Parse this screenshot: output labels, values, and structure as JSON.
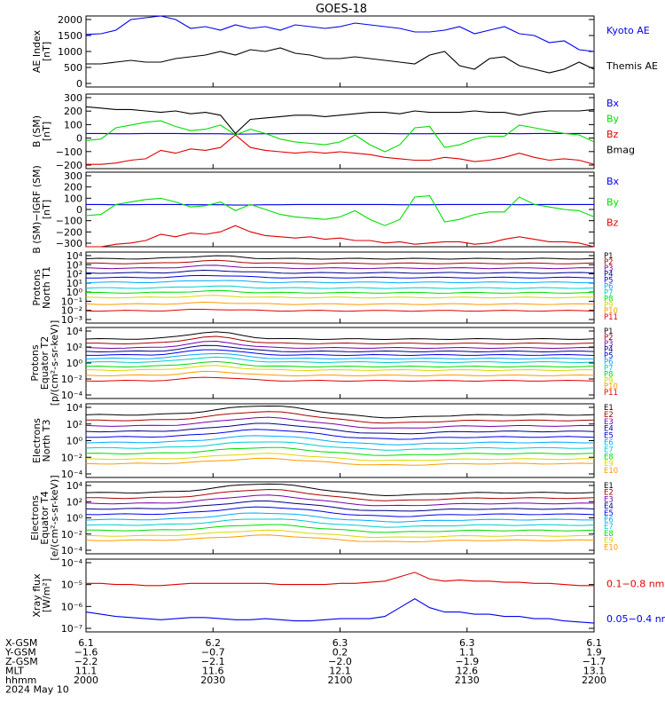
{
  "title": "GOES-18",
  "colors": {
    "black": "#000000",
    "red": "#e00000",
    "blue": "#0000ee",
    "green": "#00dd00",
    "orange": "#ff9900",
    "yellow": "#d8d800",
    "cyan": "#00cccc",
    "lightblue": "#00aaff",
    "purple": "#7700aa",
    "darkblue": "#000088",
    "darkred": "#aa0000"
  },
  "chart_data": [
    {
      "type": "line",
      "id": "ae",
      "ylabel": [
        "AE Index",
        "[nT]"
      ],
      "yticks": [
        "2000",
        "1500",
        "1000",
        "500",
        "0"
      ],
      "ylim": [
        0,
        2000
      ],
      "series": [
        {
          "name": "Kyoto AE",
          "color": "#0000ee",
          "y": [
            1480,
            1500,
            1600,
            1900,
            1950,
            2000,
            1900,
            1650,
            1700,
            1600,
            1750,
            1650,
            1700,
            1600,
            1750,
            1700,
            1650,
            1700,
            1800,
            1750,
            1700,
            1650,
            1550,
            1550,
            1600,
            1700,
            1500,
            1600,
            1700,
            1500,
            1450,
            1250,
            1300,
            1050,
            1000
          ]
        },
        {
          "name": "Themis AE",
          "color": "#000000",
          "y": [
            650,
            650,
            700,
            750,
            700,
            700,
            800,
            850,
            900,
            1000,
            900,
            1050,
            1000,
            1100,
            950,
            900,
            800,
            800,
            850,
            800,
            750,
            700,
            650,
            900,
            1000,
            600,
            500,
            800,
            850,
            600,
            500,
            400,
            500,
            700,
            500
          ]
        }
      ]
    },
    {
      "type": "line",
      "id": "b-sm",
      "ylabel": [
        "B (SM)",
        "[nT]"
      ],
      "yticks": [
        "300",
        "200",
        "100",
        "0",
        "−100",
        "−200"
      ],
      "ylim": [
        -230,
        300
      ],
      "series": [
        {
          "name": "Bx",
          "color": "#0000ee",
          "y": [
            20,
            20,
            18,
            18,
            20,
            20,
            20,
            18,
            18,
            18,
            15,
            16,
            18,
            18,
            20,
            20,
            20,
            20,
            20,
            20,
            20,
            18,
            18,
            18,
            20,
            20,
            20,
            20,
            20,
            18,
            20,
            20,
            20,
            20,
            20
          ]
        },
        {
          "name": "By",
          "color": "#00dd00",
          "y": [
            -30,
            -20,
            60,
            80,
            100,
            110,
            70,
            40,
            50,
            80,
            10,
            50,
            20,
            -20,
            -40,
            -50,
            -60,
            -40,
            10,
            -60,
            -110,
            -60,
            60,
            70,
            -80,
            -60,
            -20,
            0,
            0,
            80,
            60,
            40,
            20,
            10,
            -40
          ]
        },
        {
          "name": "Bz",
          "color": "#e00000",
          "y": [
            -200,
            -200,
            -190,
            -170,
            -160,
            -100,
            -120,
            -90,
            -100,
            -80,
            10,
            -80,
            -100,
            -110,
            -120,
            -110,
            -120,
            -110,
            -120,
            -130,
            -150,
            -160,
            -170,
            -170,
            -150,
            -160,
            -180,
            -170,
            -150,
            -120,
            -150,
            -170,
            -160,
            -170,
            -200
          ]
        },
        {
          "name": "Bmag",
          "color": "#000000",
          "y": [
            210,
            200,
            190,
            190,
            180,
            170,
            180,
            160,
            170,
            150,
            20,
            120,
            130,
            140,
            150,
            150,
            140,
            150,
            160,
            170,
            170,
            160,
            180,
            170,
            170,
            170,
            180,
            170,
            170,
            150,
            170,
            180,
            180,
            180,
            190
          ]
        }
      ]
    },
    {
      "type": "line",
      "id": "b-igrf",
      "ylabel": [
        "B (SM)−IGRF (SM)",
        "[nT]"
      ],
      "yticks": [
        "300",
        "200",
        "100",
        "0",
        "−100",
        "−200",
        "−300"
      ],
      "ylim": [
        -300,
        300
      ],
      "series": [
        {
          "name": "Bx",
          "color": "#0000ee",
          "y": [
            40,
            40,
            38,
            38,
            40,
            40,
            40,
            38,
            38,
            38,
            35,
            36,
            38,
            38,
            40,
            40,
            40,
            40,
            40,
            40,
            40,
            38,
            38,
            38,
            40,
            40,
            40,
            40,
            40,
            38,
            40,
            40,
            40,
            40,
            40
          ]
        },
        {
          "name": "By",
          "color": "#00dd00",
          "y": [
            -50,
            -40,
            40,
            60,
            80,
            90,
            60,
            20,
            30,
            60,
            -10,
            40,
            0,
            -40,
            -60,
            -70,
            -80,
            -60,
            -10,
            -80,
            -130,
            -80,
            100,
            110,
            -100,
            -80,
            -40,
            -20,
            -20,
            100,
            40,
            20,
            0,
            -10,
            -60
          ]
        },
        {
          "name": "Bz",
          "color": "#e00000",
          "y": [
            -300,
            -300,
            -280,
            -270,
            -250,
            -200,
            -220,
            -190,
            -200,
            -180,
            -130,
            -180,
            -210,
            -220,
            -230,
            -220,
            -240,
            -230,
            -250,
            -250,
            -270,
            -260,
            -280,
            -270,
            -260,
            -260,
            -280,
            -270,
            -240,
            -220,
            -240,
            -260,
            -260,
            -270,
            -300
          ]
        }
      ]
    },
    {
      "type": "line",
      "id": "protons-north",
      "log": true,
      "ylabel": [
        "Protons",
        "North T1"
      ],
      "yticks": [
        "10⁴",
        "10³",
        "10²",
        "10¹",
        "10⁰",
        "10⁻¹",
        "10⁻²",
        "10⁻³"
      ],
      "ylim": [
        -3.5,
        4
      ],
      "labels": [
        "P1",
        "P2",
        "P3",
        "P4",
        "P5",
        "P6",
        "P7",
        "P8",
        "P9",
        "P10",
        "P11"
      ],
      "bases": [
        3.3,
        2.8,
        2.3,
        1.8,
        1.3,
        0.8,
        0.2,
        -0.3,
        -0.8,
        -1.5,
        -2.2
      ],
      "colors": [
        "#000000",
        "#aa0000",
        "#7700aa",
        "#000088",
        "#0000ee",
        "#00aaff",
        "#00cccc",
        "#00dd00",
        "#d8d800",
        "#ff9900",
        "#e00000"
      ]
    },
    {
      "type": "line",
      "id": "protons-equator",
      "log": true,
      "ylabel": [
        "Protons",
        "Equator T2",
        "[p/(cm²-s-sr-keV)]"
      ],
      "yticks": [
        "10⁴",
        "10²",
        "10⁰",
        "10⁻²",
        "10⁻⁴"
      ],
      "ylim": [
        -4,
        4
      ],
      "labels": [
        "P1",
        "P2",
        "P3",
        "P4",
        "P5",
        "P6",
        "P7",
        "P8",
        "P9",
        "P10",
        "P11"
      ],
      "bases": [
        2.7,
        2.2,
        1.7,
        1.3,
        0.9,
        0.5,
        0.1,
        -0.4,
        -0.8,
        -1.4,
        -2.0
      ],
      "colors": [
        "#000000",
        "#aa0000",
        "#7700aa",
        "#000088",
        "#0000ee",
        "#00aaff",
        "#00cccc",
        "#00dd00",
        "#d8d800",
        "#ff9900",
        "#e00000"
      ]
    },
    {
      "type": "line",
      "id": "electrons-north",
      "log": true,
      "ylabel": [
        "Electrons",
        "North T3"
      ],
      "yticks": [
        "10⁴",
        "10²",
        "10⁰",
        "10⁻²",
        "10⁻⁴"
      ],
      "ylim": [
        -4,
        4
      ],
      "labels": [
        "E1",
        "E2",
        "E3",
        "E4",
        "E5",
        "E6",
        "E7",
        "E8",
        "E9",
        "E10"
      ],
      "bases": [
        2.8,
        2.2,
        1.6,
        1.0,
        0.4,
        -0.2,
        -0.8,
        -1.4,
        -2.0,
        -2.5
      ],
      "colors": [
        "#000000",
        "#aa0000",
        "#7700aa",
        "#000088",
        "#0000ee",
        "#00aaff",
        "#00cccc",
        "#00dd00",
        "#d8d800",
        "#ff9900"
      ]
    },
    {
      "type": "line",
      "id": "electrons-equator",
      "log": true,
      "ylabel": [
        "Electrons",
        "Equator T4",
        "[e/(cm²-s-sr-keV)]"
      ],
      "yticks": [
        "10⁴",
        "10²",
        "10⁰",
        "10⁻²",
        "10⁻⁴"
      ],
      "ylim": [
        -4,
        4
      ],
      "labels": [
        "E1",
        "E2",
        "E3",
        "E4",
        "E5",
        "E6",
        "E7",
        "E8",
        "E9",
        "E10"
      ],
      "bases": [
        2.8,
        2.2,
        1.6,
        1.0,
        0.4,
        -0.2,
        -0.8,
        -1.4,
        -2.0,
        -2.5
      ],
      "colors": [
        "#000000",
        "#aa0000",
        "#7700aa",
        "#000088",
        "#0000ee",
        "#00aaff",
        "#00cccc",
        "#00dd00",
        "#d8d800",
        "#ff9900"
      ]
    },
    {
      "type": "line",
      "id": "xray",
      "log": true,
      "ylabel": [
        "Xray flux",
        "[W/m²]"
      ],
      "yticks": [
        "10⁻⁴",
        "10⁻⁵",
        "10⁻⁶",
        "10⁻⁷"
      ],
      "ylim": [
        -7.3,
        -4
      ],
      "series": [
        {
          "name": "0.1−0.8 nm",
          "color": "#e00000",
          "y": [
            -5.1,
            -5.1,
            -5.15,
            -5.15,
            -5.2,
            -5.2,
            -5.15,
            -5.1,
            -5.1,
            -5.1,
            -5.1,
            -5.1,
            -5.1,
            -5.15,
            -5.15,
            -5.15,
            -5.15,
            -5.1,
            -5.1,
            -5.05,
            -5.0,
            -4.8,
            -4.6,
            -4.9,
            -5.0,
            -4.95,
            -5.0,
            -5.0,
            -5.05,
            -5.05,
            -5.1,
            -5.1,
            -5.15,
            -5.2,
            -5.2
          ]
        },
        {
          "name": "0.05−0.4 nm",
          "color": "#0000ee",
          "y": [
            -6.4,
            -6.5,
            -6.6,
            -6.65,
            -6.7,
            -6.75,
            -6.7,
            -6.65,
            -6.65,
            -6.7,
            -6.75,
            -6.75,
            -6.7,
            -6.75,
            -6.8,
            -6.8,
            -6.75,
            -6.7,
            -6.7,
            -6.7,
            -6.6,
            -6.2,
            -5.8,
            -6.2,
            -6.4,
            -6.4,
            -6.5,
            -6.5,
            -6.6,
            -6.6,
            -6.7,
            -6.7,
            -6.8,
            -6.85,
            -6.9
          ]
        }
      ]
    }
  ],
  "footer": {
    "row_labels": [
      "X-GSM",
      "Y-GSM",
      "Z-GSM",
      "MLT",
      "hhmm",
      "2024 May 10"
    ],
    "columns": [
      [
        "6.1",
        "−1.6",
        "−2.2",
        "11.1",
        "2000"
      ],
      [
        "6.2",
        "−0.7",
        "−2.1",
        "11.6",
        "2030"
      ],
      [
        "6.3",
        "0.2",
        "−2.0",
        "12.1",
        "2100"
      ],
      [
        "6.3",
        "1.1",
        "−1.9",
        "12.6",
        "2130"
      ],
      [
        "6.1",
        "1.9",
        "−1.7",
        "13.1",
        "2200"
      ]
    ]
  }
}
